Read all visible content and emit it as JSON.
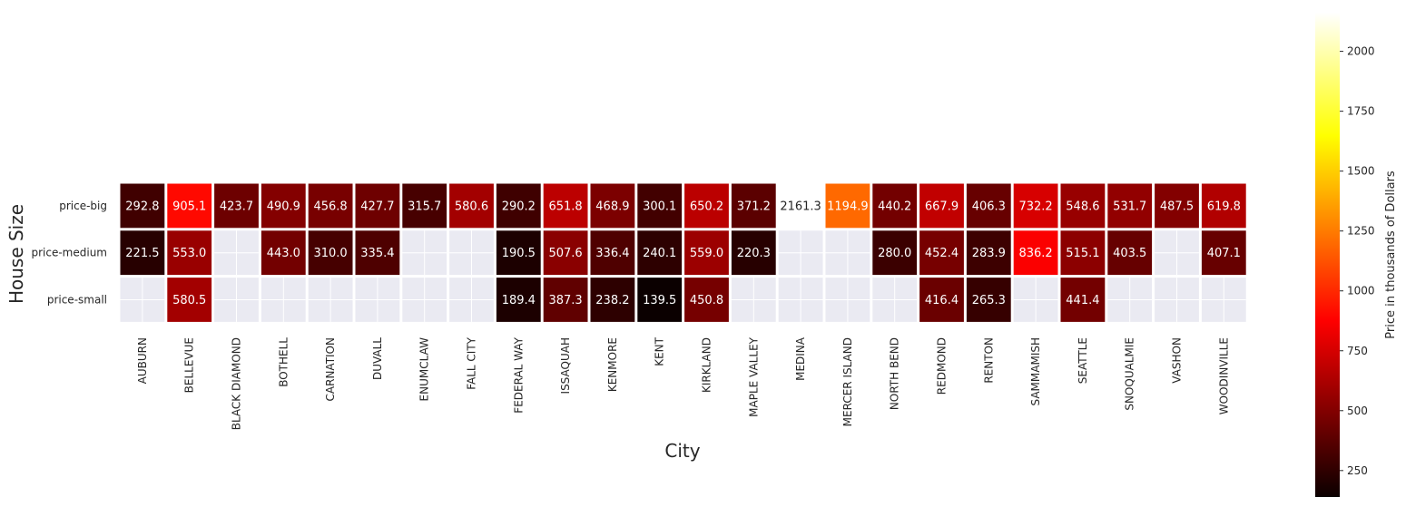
{
  "chart_data": {
    "type": "heatmap",
    "xlabel": "City",
    "ylabel": "House Size",
    "colorbar_label": "Price in thousands of Dollars",
    "colormap": "hot",
    "color_range": [
      139.5,
      2161.3
    ],
    "colorbar_ticks": [
      250,
      500,
      750,
      1000,
      1250,
      1500,
      1750,
      2000
    ],
    "missing_color": "#eaeaf2",
    "columns": [
      "AUBURN",
      "BELLEVUE",
      "BLACK DIAMOND",
      "BOTHELL",
      "CARNATION",
      "DUVALL",
      "ENUMCLAW",
      "FALL CITY",
      "FEDERAL WAY",
      "ISSAQUAH",
      "KENMORE",
      "KENT",
      "KIRKLAND",
      "MAPLE VALLEY",
      "MEDINA",
      "MERCER ISLAND",
      "NORTH BEND",
      "REDMOND",
      "RENTON",
      "SAMMAMISH",
      "SEATTLE",
      "SNOQUALMIE",
      "VASHON",
      "WOODINVILLE"
    ],
    "rows": [
      "price-big",
      "price-medium",
      "price-small"
    ],
    "values": [
      [
        292.8,
        905.1,
        423.7,
        490.9,
        456.8,
        427.7,
        315.7,
        580.6,
        290.2,
        651.8,
        468.9,
        300.1,
        650.2,
        371.2,
        2161.3,
        1194.9,
        440.2,
        667.9,
        406.3,
        732.2,
        548.6,
        531.7,
        487.5,
        619.8
      ],
      [
        221.5,
        553.0,
        null,
        443.0,
        310.0,
        335.4,
        null,
        null,
        190.5,
        507.6,
        336.4,
        240.1,
        559.0,
        220.3,
        null,
        null,
        280.0,
        452.4,
        283.9,
        836.2,
        515.1,
        403.5,
        null,
        407.1
      ],
      [
        null,
        580.5,
        null,
        null,
        null,
        null,
        null,
        null,
        189.4,
        387.3,
        238.2,
        139.5,
        450.8,
        null,
        null,
        null,
        null,
        416.4,
        265.3,
        null,
        441.4,
        null,
        null,
        null
      ]
    ],
    "value_labels": [
      [
        "292.8",
        "905.1",
        "423.7",
        "490.9",
        "456.8",
        "427.7",
        "315.7",
        "580.6",
        "290.2",
        "651.8",
        "468.9",
        "300.1",
        "650.2",
        "371.2",
        "2161.3",
        "1194.9",
        "440.2",
        "667.9",
        "406.3",
        "732.2",
        "548.6",
        "531.7",
        "487.5",
        "619.8"
      ],
      [
        "221.5",
        "553.0",
        "",
        "443.0",
        "310.0",
        "335.4",
        "",
        "",
        "190.5",
        "507.6",
        "336.4",
        "240.1",
        "559.0",
        "220.3",
        "",
        "",
        "280.0",
        "452.4",
        "283.9",
        "836.2",
        "515.1",
        "403.5",
        "",
        "407.1"
      ],
      [
        "",
        "580.5",
        "",
        "",
        "",
        "",
        "",
        "",
        "189.4",
        "387.3",
        "238.2",
        "139.5",
        "450.8",
        "",
        "",
        "",
        "",
        "416.4",
        "265.3",
        "",
        "441.4",
        "",
        "",
        ""
      ]
    ]
  }
}
